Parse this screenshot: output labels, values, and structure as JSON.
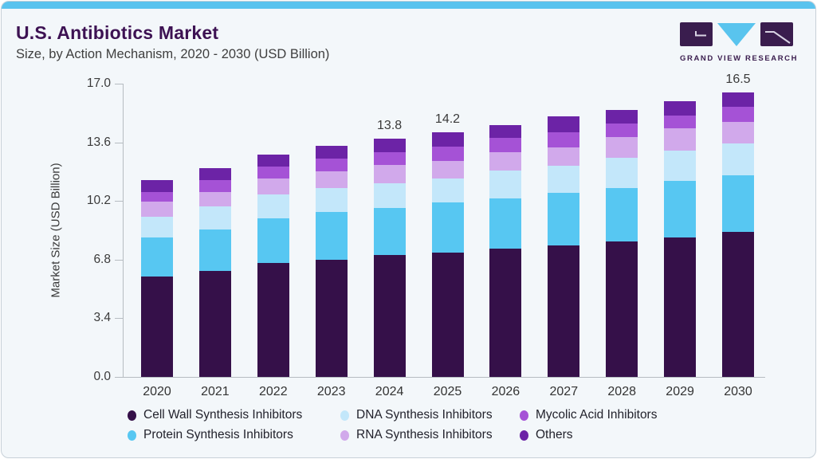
{
  "header": {
    "title": "U.S. Antibiotics Market",
    "subtitle": "Size, by Action Mechanism, 2020 - 2030 (USD Billion)",
    "logo_text": "GRAND VIEW RESEARCH"
  },
  "colors": {
    "top_strip": "#5ac3ee",
    "title_text": "#3d1253",
    "logo_purple": "#3a1d4e",
    "logo_blue": "#59c4ee",
    "axis_line": "#b6bcc1",
    "card_background": "#f3f7fa"
  },
  "chart_data": {
    "type": "bar",
    "stacked": true,
    "title": "U.S. Antibiotics Market Size, by Action Mechanism, 2020 - 2030 (USD Billion)",
    "xlabel": "",
    "ylabel": "Market Size (USD Billion)",
    "ylim": [
      0,
      17.0
    ],
    "yticks": [
      "0.0",
      "3.4",
      "6.8",
      "10.2",
      "13.6",
      "17.0"
    ],
    "grid": false,
    "legend_position": "bottom",
    "categories": [
      "2020",
      "2021",
      "2022",
      "2023",
      "2024",
      "2025",
      "2026",
      "2027",
      "2028",
      "2029",
      "2030"
    ],
    "series": [
      {
        "name": "Cell Wall Synthesis Inhibitors",
        "color": "#351049",
        "values": [
          5.8,
          6.15,
          6.6,
          6.8,
          7.05,
          7.2,
          7.45,
          7.6,
          7.85,
          8.1,
          8.4
        ]
      },
      {
        "name": "Protein Synthesis Inhibitors",
        "color": "#57c7f2",
        "values": [
          2.3,
          2.4,
          2.6,
          2.75,
          2.75,
          2.9,
          2.9,
          3.05,
          3.1,
          3.25,
          3.3
        ]
      },
      {
        "name": "DNA Synthesis Inhibitors",
        "color": "#c3e7fa",
        "values": [
          1.2,
          1.35,
          1.4,
          1.4,
          1.45,
          1.4,
          1.6,
          1.6,
          1.75,
          1.75,
          1.85
        ]
      },
      {
        "name": "RNA Synthesis Inhibitors",
        "color": "#d1a9eb",
        "values": [
          0.85,
          0.8,
          0.9,
          0.95,
          1.05,
          1.0,
          1.1,
          1.05,
          1.2,
          1.3,
          1.25
        ]
      },
      {
        "name": "Mycolic Acid Inhibitors",
        "color": "#a552d6",
        "values": [
          0.55,
          0.7,
          0.7,
          0.75,
          0.75,
          0.85,
          0.8,
          0.9,
          0.8,
          0.75,
          0.85
        ]
      },
      {
        "name": "Others",
        "color": "#6c23a6",
        "values": [
          0.7,
          0.7,
          0.7,
          0.75,
          0.75,
          0.85,
          0.75,
          0.9,
          0.8,
          0.85,
          0.85
        ]
      }
    ],
    "totals": [
      11.4,
      12.1,
      12.9,
      13.4,
      13.8,
      14.2,
      14.6,
      15.1,
      15.5,
      16.0,
      16.5
    ],
    "bar_value_labels": [
      {
        "category": "2024",
        "text": "13.8"
      },
      {
        "category": "2025",
        "text": "14.2"
      },
      {
        "category": "2030",
        "text": "16.5"
      }
    ]
  },
  "legend": {
    "items": [
      {
        "label": "Cell Wall Synthesis Inhibitors"
      },
      {
        "label": "DNA Synthesis Inhibitors"
      },
      {
        "label": "Mycolic Acid Inhibitors"
      },
      {
        "label": "Protein Synthesis Inhibitors"
      },
      {
        "label": "RNA Synthesis Inhibitors"
      },
      {
        "label": "Others"
      }
    ]
  }
}
